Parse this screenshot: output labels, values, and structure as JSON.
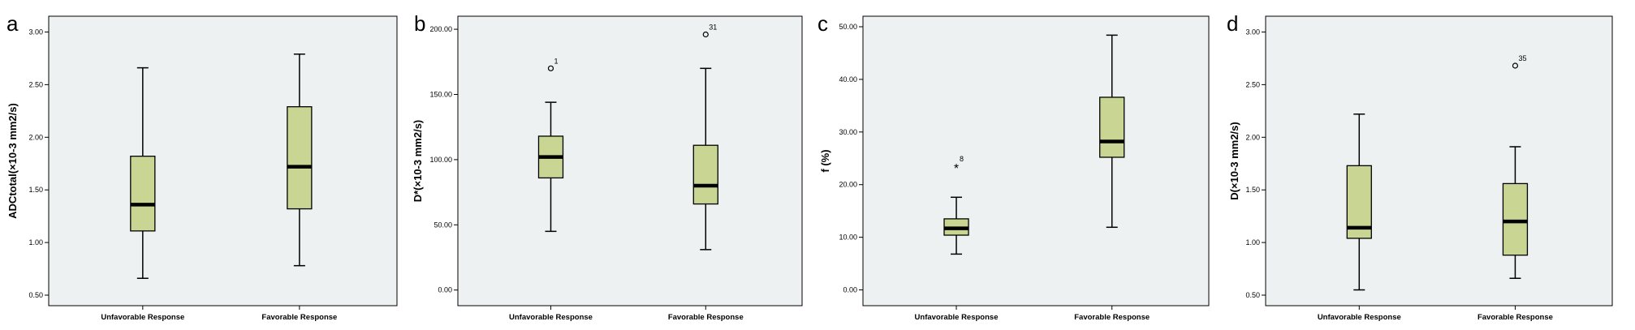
{
  "chart_data": [
    {
      "type": "box",
      "panel": "a",
      "ylabel": "ADCtotal(×10-3 mm2/s)",
      "ylim": [
        0.4,
        3.15
      ],
      "yticks": [
        "0.50",
        "1.00",
        "1.50",
        "2.00",
        "2.50",
        "3.00"
      ],
      "categories": [
        "Unfavorable Response",
        "Favorable Response"
      ],
      "boxes": [
        {
          "min": 0.66,
          "q1": 1.11,
          "median": 1.36,
          "q3": 1.82,
          "max": 2.66
        },
        {
          "min": 0.78,
          "q1": 1.32,
          "median": 1.72,
          "q3": 2.29,
          "max": 2.79
        }
      ],
      "outliers": []
    },
    {
      "type": "box",
      "panel": "b",
      "ylabel": "D*(×10-3 mm2/s)",
      "ylim": [
        -12,
        210
      ],
      "yticks": [
        "0.00",
        "50.00",
        "100.00",
        "150.00",
        "200.00"
      ],
      "categories": [
        "Unfavorable Response",
        "Favorable Response"
      ],
      "boxes": [
        {
          "min": 45,
          "q1": 86,
          "median": 102,
          "q3": 118,
          "max": 144
        },
        {
          "min": 31,
          "q1": 66,
          "median": 80,
          "q3": 111,
          "max": 170
        }
      ],
      "outliers": [
        {
          "box": 0,
          "value": 170,
          "label": "1",
          "marker": "circle"
        },
        {
          "box": 1,
          "value": 196,
          "label": "31",
          "marker": "circle"
        }
      ]
    },
    {
      "type": "box",
      "panel": "c",
      "ylabel": "f (%)",
      "ylim": [
        -3,
        52
      ],
      "yticks": [
        "0.00",
        "10.00",
        "20.00",
        "30.00",
        "40.00",
        "50.00"
      ],
      "categories": [
        "Unfavorable Response",
        "Favorable Response"
      ],
      "boxes": [
        {
          "min": 6.8,
          "q1": 10.4,
          "median": 11.7,
          "q3": 13.5,
          "max": 17.6
        },
        {
          "min": 11.9,
          "q1": 25.2,
          "median": 28.2,
          "q3": 36.6,
          "max": 48.4
        }
      ],
      "outliers": [
        {
          "box": 0,
          "value": 23.5,
          "label": "8",
          "marker": "star"
        }
      ]
    },
    {
      "type": "box",
      "panel": "d",
      "ylabel": "D(×10-3 mm2/s)",
      "ylim": [
        0.4,
        3.15
      ],
      "yticks": [
        "0.50",
        "1.00",
        "1.50",
        "2.00",
        "2.50",
        "3.00"
      ],
      "categories": [
        "Unfavorable Response",
        "Favorable Response"
      ],
      "boxes": [
        {
          "min": 0.55,
          "q1": 1.04,
          "median": 1.14,
          "q3": 1.73,
          "max": 2.22
        },
        {
          "min": 0.66,
          "q1": 0.88,
          "median": 1.2,
          "q3": 1.56,
          "max": 1.91
        }
      ],
      "outliers": [
        {
          "box": 1,
          "value": 2.68,
          "label": "35",
          "marker": "circle"
        }
      ]
    }
  ],
  "colors": {
    "plot_background": "#eef1f1",
    "box_fill": "#c9d593",
    "stroke": "#000000"
  }
}
